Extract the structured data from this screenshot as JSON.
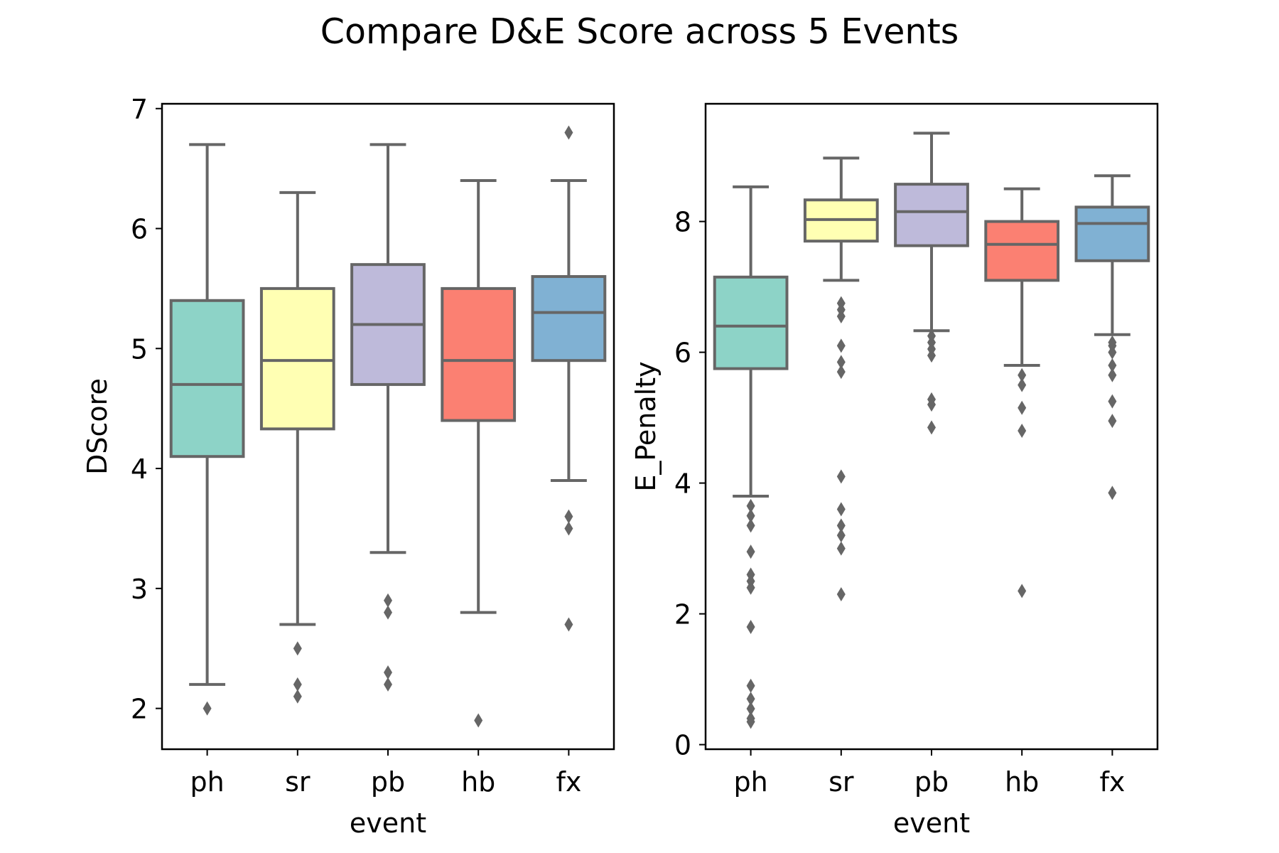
{
  "title": "Compare D&E Score across 5 Events",
  "chart_data": [
    {
      "type": "box",
      "xlabel": "event",
      "ylabel": "DScore",
      "ylim": [
        1.66,
        7.04
      ],
      "yticks": [
        2,
        3,
        4,
        5,
        6,
        7
      ],
      "categories": [
        "ph",
        "sr",
        "pb",
        "hb",
        "fx"
      ],
      "colors": [
        "#8dd3c7",
        "#ffffb3",
        "#bebada",
        "#fb8072",
        "#80b1d3"
      ],
      "boxes": [
        {
          "whisker_low": 2.2,
          "q1": 4.1,
          "median": 4.7,
          "q3": 5.4,
          "whisker_high": 6.7,
          "outliers": [
            2.0
          ]
        },
        {
          "whisker_low": 2.7,
          "q1": 4.33,
          "median": 4.9,
          "q3": 5.5,
          "whisker_high": 6.3,
          "outliers": [
            2.1,
            2.2,
            2.5
          ]
        },
        {
          "whisker_low": 3.3,
          "q1": 4.7,
          "median": 5.2,
          "q3": 5.7,
          "whisker_high": 6.7,
          "outliers": [
            2.2,
            2.3,
            2.8,
            2.9
          ]
        },
        {
          "whisker_low": 2.8,
          "q1": 4.4,
          "median": 4.9,
          "q3": 5.5,
          "whisker_high": 6.4,
          "outliers": [
            1.9
          ]
        },
        {
          "whisker_low": 3.9,
          "q1": 4.9,
          "median": 5.3,
          "q3": 5.6,
          "whisker_high": 6.4,
          "outliers": [
            2.7,
            3.5,
            3.6,
            6.8
          ]
        }
      ]
    },
    {
      "type": "box",
      "xlabel": "event",
      "ylabel": "E_Penalty",
      "ylim": [
        -0.07,
        9.8
      ],
      "yticks": [
        0,
        2,
        4,
        6,
        8
      ],
      "categories": [
        "ph",
        "sr",
        "pb",
        "hb",
        "fx"
      ],
      "colors": [
        "#8dd3c7",
        "#ffffb3",
        "#bebada",
        "#fb8072",
        "#80b1d3"
      ],
      "boxes": [
        {
          "whisker_low": 3.8,
          "q1": 5.75,
          "median": 6.4,
          "q3": 7.15,
          "whisker_high": 8.53,
          "outliers": [
            0.35,
            0.4,
            0.55,
            0.7,
            0.9,
            1.8,
            2.4,
            2.5,
            2.6,
            2.95,
            3.35,
            3.5,
            3.65
          ]
        },
        {
          "whisker_low": 7.1,
          "q1": 7.7,
          "median": 8.03,
          "q3": 8.33,
          "whisker_high": 8.97,
          "outliers": [
            2.3,
            3.0,
            3.2,
            3.35,
            3.6,
            4.1,
            5.7,
            5.85,
            6.1,
            6.55,
            6.65,
            6.75
          ]
        },
        {
          "whisker_low": 6.33,
          "q1": 7.63,
          "median": 8.15,
          "q3": 8.57,
          "whisker_high": 9.35,
          "outliers": [
            4.85,
            5.2,
            5.28,
            5.95,
            6.05,
            6.15,
            6.25
          ]
        },
        {
          "whisker_low": 5.8,
          "q1": 7.1,
          "median": 7.65,
          "q3": 8.0,
          "whisker_high": 8.5,
          "outliers": [
            2.35,
            4.8,
            5.15,
            5.5,
            5.65
          ]
        },
        {
          "whisker_low": 6.27,
          "q1": 7.4,
          "median": 7.97,
          "q3": 8.22,
          "whisker_high": 8.7,
          "outliers": [
            3.85,
            4.95,
            5.25,
            5.65,
            5.8,
            6.0,
            6.1,
            6.15
          ]
        }
      ]
    }
  ]
}
